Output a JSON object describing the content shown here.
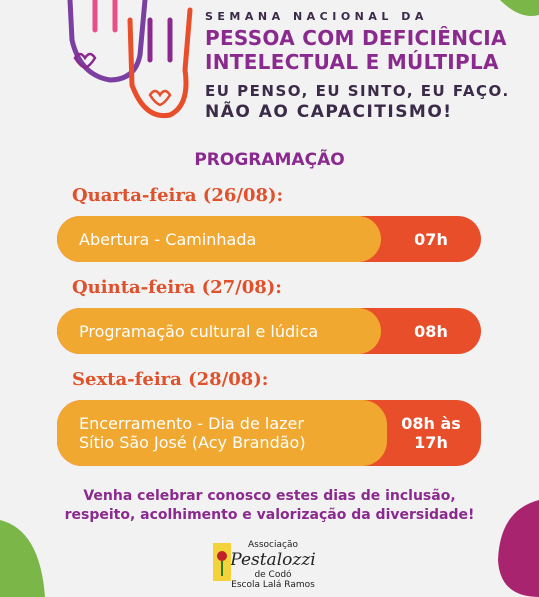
{
  "header": {
    "line1": "SEMANA NACIONAL DA",
    "line2": "PESSOA COM DEFICIÊNCIA",
    "line3": "INTELECTUAL E MÚLTIPLA",
    "slogan1": "EU PENSO, EU SINTO, EU FAÇO.",
    "slogan2": "NÃO AO CAPACITISMO!"
  },
  "section_title": "PROGRAMAÇÃO",
  "events": [
    {
      "day": "Quarta-feira (26/08):",
      "activity": [
        "Abertura - Caminhada"
      ],
      "time": [
        "07h"
      ]
    },
    {
      "day": "Quinta-feira (27/08):",
      "activity": [
        "Programação cultural e lúdica"
      ],
      "time": [
        "08h"
      ]
    },
    {
      "day": "Sexta-feira (28/08):",
      "activity": [
        "Encerramento - Dia de lazer",
        "Sítio São José (Acy Brandão)"
      ],
      "time": [
        "08h às",
        "17h"
      ]
    }
  ],
  "footer": [
    "Venha celebrar conosco estes dias de inclusão,",
    "respeito, acolhimento e valorização da diversidade!"
  ],
  "logo": {
    "line1": "Associação",
    "line2": "Pestalozzi",
    "line3": "de Codó",
    "line4": "Escola Lalá Ramos"
  }
}
